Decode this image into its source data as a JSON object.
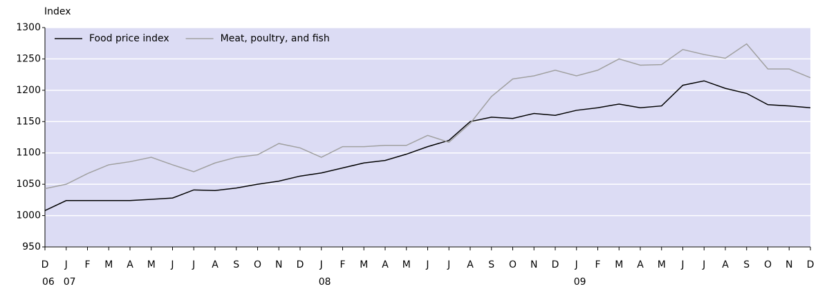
{
  "chart_data": {
    "type": "line",
    "y_label": "Index",
    "categories": [
      "D",
      "J",
      "F",
      "M",
      "A",
      "M",
      "J",
      "J",
      "A",
      "S",
      "O",
      "N",
      "D",
      "J",
      "F",
      "M",
      "A",
      "M",
      "J",
      "J",
      "A",
      "S",
      "O",
      "N",
      "D",
      "J",
      "F",
      "M",
      "A",
      "M",
      "J",
      "J",
      "A",
      "S",
      "O",
      "N",
      "D"
    ],
    "year_labels": [
      "06",
      "07",
      null,
      null,
      null,
      null,
      null,
      null,
      null,
      null,
      null,
      null,
      null,
      "08",
      null,
      null,
      null,
      null,
      null,
      null,
      null,
      null,
      null,
      null,
      null,
      "09",
      null,
      null,
      null,
      null,
      null,
      null,
      null,
      null,
      null,
      null,
      null
    ],
    "series": [
      {
        "name": "Food price index",
        "color": "#000000",
        "values": [
          1008,
          1024,
          1024,
          1024,
          1024,
          1026,
          1028,
          1041,
          1040,
          1044,
          1050,
          1055,
          1063,
          1068,
          1076,
          1084,
          1088,
          1098,
          1110,
          1120,
          1150,
          1157,
          1155,
          1163,
          1160,
          1168,
          1172,
          1178,
          1172,
          1175,
          1208,
          1215,
          1203,
          1195,
          1177,
          1175,
          1172
        ]
      },
      {
        "name": "Meat, poultry, and fish",
        "color": "#a0a0a0",
        "values": [
          1043,
          1050,
          1067,
          1081,
          1086,
          1093,
          1081,
          1070,
          1084,
          1093,
          1097,
          1115,
          1108,
          1093,
          1110,
          1110,
          1112,
          1112,
          1128,
          1117,
          1147,
          1190,
          1218,
          1223,
          1232,
          1223,
          1232,
          1250,
          1240,
          1241,
          1265,
          1257,
          1251,
          1274,
          1234,
          1234,
          1220
        ]
      }
    ],
    "ylim": [
      950,
      1300
    ],
    "yticks": [
      950,
      1000,
      1050,
      1100,
      1150,
      1200,
      1250,
      1300
    ],
    "grid": true,
    "legend": "top-left",
    "background": "#dcdcf4"
  }
}
